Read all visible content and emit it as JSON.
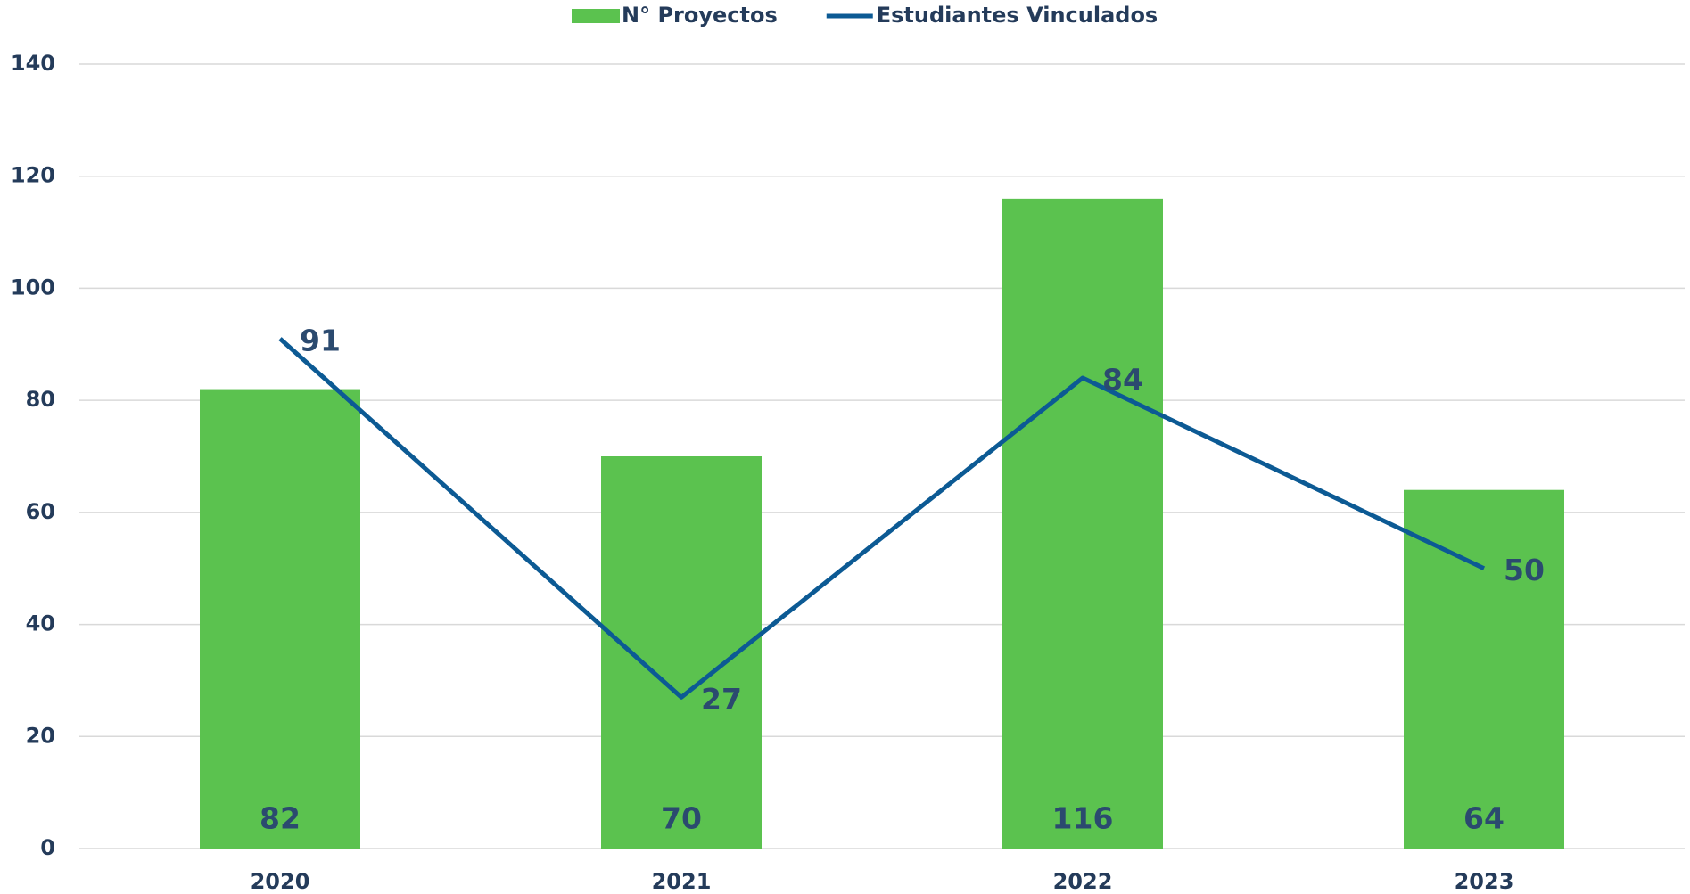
{
  "chart_data": {
    "type": "bar",
    "categories": [
      "2020",
      "2021",
      "2022",
      "2023"
    ],
    "series": [
      {
        "name": "N° Proyectos",
        "type": "bar",
        "color": "#5bc24f",
        "values": [
          82,
          70,
          116,
          64
        ]
      },
      {
        "name": "Estudiantes Vinculados",
        "type": "line",
        "color": "#0c5a94",
        "values": [
          91,
          27,
          84,
          50
        ]
      }
    ],
    "ylim": [
      0,
      140
    ],
    "yticks": [
      0,
      20,
      40,
      60,
      80,
      100,
      120,
      140
    ],
    "grid": true,
    "legend": "top"
  }
}
